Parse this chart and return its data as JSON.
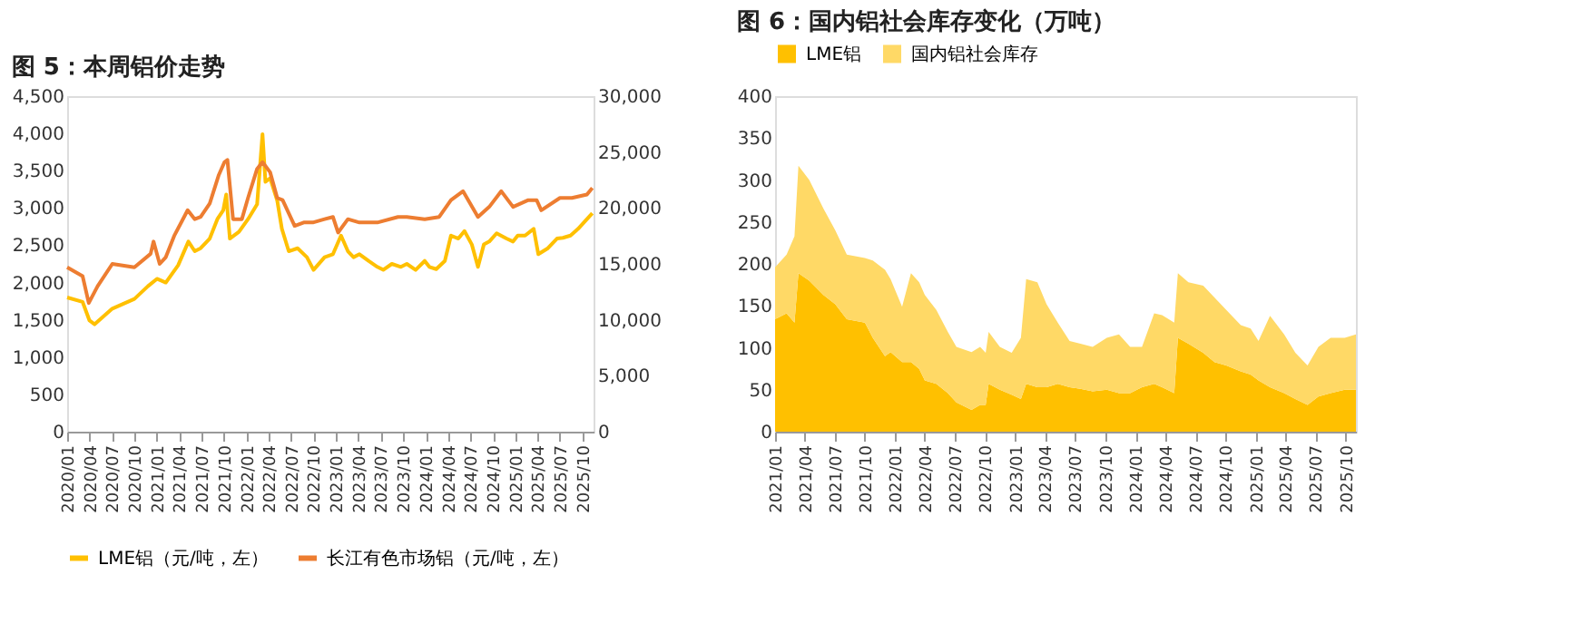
{
  "chart_data": [
    {
      "type": "line",
      "title": "图 5：本周铝价走势",
      "legend": "bottom",
      "grid": false,
      "xlim": [
        "2020-01-01",
        "2025-11-15"
      ],
      "xticks": [
        {
          "value": "2020-01",
          "label": "2020/01"
        },
        {
          "value": "2020-04",
          "label": "2020/04"
        },
        {
          "value": "2020-07",
          "label": "2020/07"
        },
        {
          "value": "2020-10",
          "label": "2020/10"
        },
        {
          "value": "2021-01",
          "label": "2021/01"
        },
        {
          "value": "2021-04",
          "label": "2021/04"
        },
        {
          "value": "2021-07",
          "label": "2021/07"
        },
        {
          "value": "2021-10",
          "label": "2021/10"
        },
        {
          "value": "2022-01",
          "label": "2022/01"
        },
        {
          "value": "2022-04",
          "label": "2022/04"
        },
        {
          "value": "2022-07",
          "label": "2022/07"
        },
        {
          "value": "2022-10",
          "label": "2022/10"
        },
        {
          "value": "2023-01",
          "label": "2023/01"
        },
        {
          "value": "2023-04",
          "label": "2023/04"
        },
        {
          "value": "2023-07",
          "label": "2023/07"
        },
        {
          "value": "2023-10",
          "label": "2023/10"
        },
        {
          "value": "2024-01",
          "label": "2024/01"
        },
        {
          "value": "2024-04",
          "label": "2024/04"
        },
        {
          "value": "2024-07",
          "label": "2024/07"
        },
        {
          "value": "2024-10",
          "label": "2024/10"
        },
        {
          "value": "2025-01",
          "label": "2025/01"
        },
        {
          "value": "2025-04",
          "label": "2025/04"
        },
        {
          "value": "2025-07",
          "label": "2025/07"
        },
        {
          "value": "2025-10",
          "label": "2025/10"
        }
      ],
      "ylim": [
        0,
        4500
      ],
      "yticks": [
        {
          "value": 0,
          "label": "0"
        },
        {
          "value": 500,
          "label": "500"
        },
        {
          "value": 1000,
          "label": "1,000"
        },
        {
          "value": 1500,
          "label": "1,500"
        },
        {
          "value": 2000,
          "label": "2,000"
        },
        {
          "value": 2500,
          "label": "2,500"
        },
        {
          "value": 3000,
          "label": "3,000"
        },
        {
          "value": 3500,
          "label": "3,500"
        },
        {
          "value": 4000,
          "label": "4,000"
        },
        {
          "value": 4500,
          "label": "4,500"
        }
      ],
      "y2lim": [
        0,
        30000
      ],
      "y2ticks": [
        {
          "value": 0,
          "label": "0"
        },
        {
          "value": 5000,
          "label": "5,000"
        },
        {
          "value": 10000,
          "label": "10,000"
        },
        {
          "value": 15000,
          "label": "15,000"
        },
        {
          "value": 20000,
          "label": "20,000"
        },
        {
          "value": 25000,
          "label": "25,000"
        },
        {
          "value": 30000,
          "label": "30,000"
        }
      ],
      "series": [
        {
          "name": "LME铝（元/吨，左）",
          "color": "#ffc000",
          "x": [
            "2020-01-01",
            "2020-03-04",
            "2020-04-01",
            "2020-04-22",
            "2020-07-03",
            "2020-10-01",
            "2020-11-25",
            "2021-01-01",
            "2021-02-06",
            "2021-03-28",
            "2021-05-09",
            "2021-06-04",
            "2021-06-28",
            "2021-08-04",
            "2021-09-04",
            "2021-09-28",
            "2021-10-10",
            "2021-10-25",
            "2021-12-01",
            "2022-01-07",
            "2022-02-13",
            "2022-03-07",
            "2022-03-19",
            "2022-04-07",
            "2022-05-06",
            "2022-05-25",
            "2022-06-22",
            "2022-07-28",
            "2022-09-04",
            "2022-10-01",
            "2022-11-15",
            "2022-12-19",
            "2023-01-21",
            "2023-02-18",
            "2023-03-13",
            "2023-04-06",
            "2023-05-13",
            "2023-06-18",
            "2023-07-12",
            "2023-08-16",
            "2023-09-22",
            "2023-10-16",
            "2023-11-21",
            "2023-12-28",
            "2024-01-16",
            "2024-02-13",
            "2024-03-19",
            "2024-04-13",
            "2024-05-13",
            "2024-06-07",
            "2024-07-07",
            "2024-08-01",
            "2024-08-25",
            "2024-09-16",
            "2024-10-16",
            "2024-11-25",
            "2024-12-22",
            "2025-01-10",
            "2025-02-09",
            "2025-03-16",
            "2025-04-04",
            "2025-05-13",
            "2025-06-19",
            "2025-07-13",
            "2025-08-13",
            "2025-09-13",
            "2025-10-19",
            "2025-11-10"
          ],
          "values": [
            1800,
            1740,
            1490,
            1440,
            1650,
            1780,
            1950,
            2050,
            2000,
            2230,
            2550,
            2420,
            2460,
            2590,
            2850,
            2970,
            3180,
            2590,
            2680,
            2850,
            3050,
            3990,
            3350,
            3400,
            3100,
            2720,
            2420,
            2460,
            2340,
            2170,
            2340,
            2380,
            2630,
            2420,
            2340,
            2380,
            2290,
            2210,
            2170,
            2250,
            2210,
            2250,
            2170,
            2290,
            2210,
            2180,
            2290,
            2630,
            2590,
            2690,
            2510,
            2210,
            2510,
            2550,
            2660,
            2590,
            2550,
            2630,
            2630,
            2720,
            2380,
            2460,
            2590,
            2600,
            2630,
            2720,
            2850,
            2930
          ]
        },
        {
          "name": "长江有色市场铝（元/吨，左）",
          "color": "#ed7d31",
          "axis": "y2",
          "x": [
            "2020-01-01",
            "2020-03-04",
            "2020-03-29",
            "2020-05-04",
            "2020-07-03",
            "2020-10-01",
            "2020-12-06",
            "2020-12-18",
            "2021-01-12",
            "2021-02-06",
            "2021-03-12",
            "2021-05-06",
            "2021-06-04",
            "2021-06-28",
            "2021-08-04",
            "2021-09-09",
            "2021-10-03",
            "2021-10-15",
            "2021-11-07",
            "2021-12-13",
            "2022-01-07",
            "2022-02-13",
            "2022-03-07",
            "2022-04-07",
            "2022-05-06",
            "2022-05-28",
            "2022-07-16",
            "2022-08-22",
            "2022-09-28",
            "2022-11-15",
            "2022-12-19",
            "2023-01-09",
            "2023-02-18",
            "2023-04-06",
            "2023-06-18",
            "2023-09-10",
            "2023-10-16",
            "2023-12-28",
            "2024-02-25",
            "2024-04-13",
            "2024-06-01",
            "2024-08-01",
            "2024-09-16",
            "2024-11-04",
            "2024-12-22",
            "2025-02-22",
            "2025-03-28",
            "2025-04-16",
            "2025-07-01",
            "2025-08-19",
            "2025-10-19",
            "2025-11-10"
          ],
          "values": [
            14700,
            13900,
            11500,
            13000,
            15000,
            14700,
            15900,
            17000,
            15000,
            15600,
            17500,
            19800,
            19000,
            19200,
            20400,
            22900,
            24100,
            24300,
            19000,
            19000,
            20900,
            23500,
            24100,
            23200,
            20900,
            20700,
            18400,
            18700,
            18700,
            19000,
            19200,
            17800,
            19000,
            18700,
            18700,
            19200,
            19200,
            19000,
            19200,
            20700,
            21500,
            19200,
            20100,
            21500,
            20100,
            20700,
            20700,
            19800,
            20900,
            20900,
            21200,
            21800
          ]
        }
      ]
    },
    {
      "type": "area",
      "stacked": true,
      "title": "图 6：国内铝社会库存变化（万吨）",
      "legend": "top",
      "grid": false,
      "xlim": [
        "2021-01-01",
        "2025-11-01"
      ],
      "xticks": [
        {
          "value": "2021-01",
          "label": "2021/01"
        },
        {
          "value": "2021-04",
          "label": "2021/04"
        },
        {
          "value": "2021-07",
          "label": "2021/07"
        },
        {
          "value": "2021-10",
          "label": "2021/10"
        },
        {
          "value": "2022-01",
          "label": "2022/01"
        },
        {
          "value": "2022-04",
          "label": "2022/04"
        },
        {
          "value": "2022-07",
          "label": "2022/07"
        },
        {
          "value": "2022-10",
          "label": "2022/10"
        },
        {
          "value": "2023-01",
          "label": "2023/01"
        },
        {
          "value": "2023-04",
          "label": "2023/04"
        },
        {
          "value": "2023-07",
          "label": "2023/07"
        },
        {
          "value": "2023-10",
          "label": "2023/10"
        },
        {
          "value": "2024-01",
          "label": "2024/01"
        },
        {
          "value": "2024-04",
          "label": "2024/04"
        },
        {
          "value": "2024-07",
          "label": "2024/07"
        },
        {
          "value": "2024-10",
          "label": "2024/10"
        },
        {
          "value": "2025-01",
          "label": "2025/01"
        },
        {
          "value": "2025-04",
          "label": "2025/04"
        },
        {
          "value": "2025-07",
          "label": "2025/07"
        },
        {
          "value": "2025-10",
          "label": "2025/10"
        }
      ],
      "ylim": [
        0,
        400
      ],
      "yticks": [
        0,
        50,
        100,
        150,
        200,
        250,
        300,
        350,
        400
      ],
      "x": [
        "2021-01-01",
        "2021-02-05",
        "2021-03-01",
        "2021-03-13",
        "2021-04-15",
        "2021-05-28",
        "2021-07-03",
        "2021-08-07",
        "2021-10-01",
        "2021-10-25",
        "2021-12-01",
        "2021-12-18",
        "2022-01-22",
        "2022-02-18",
        "2022-03-15",
        "2022-04-01",
        "2022-05-06",
        "2022-06-10",
        "2022-07-06",
        "2022-08-21",
        "2022-09-16",
        "2022-10-03",
        "2022-10-12",
        "2022-11-15",
        "2022-12-21",
        "2023-01-18",
        "2023-02-03",
        "2023-03-09",
        "2023-04-06",
        "2023-05-10",
        "2023-06-15",
        "2023-07-18",
        "2023-08-24",
        "2023-10-06",
        "2023-11-12",
        "2023-12-16",
        "2024-01-21",
        "2024-02-27",
        "2024-03-22",
        "2024-04-28",
        "2024-05-09",
        "2024-06-10",
        "2024-07-25",
        "2024-08-28",
        "2024-10-03",
        "2024-11-16",
        "2024-12-16",
        "2025-01-09",
        "2025-02-13",
        "2025-03-28",
        "2025-05-01",
        "2025-06-07",
        "2025-07-10",
        "2025-08-16",
        "2025-09-28",
        "2025-11-01"
      ],
      "series": [
        {
          "name": "LME铝",
          "color": "#ffc000",
          "values": [
            134,
            141,
            130,
            189,
            180,
            163,
            152,
            134,
            130,
            112,
            90,
            95,
            83,
            83,
            75,
            61,
            57,
            46,
            35,
            26,
            32,
            32,
            57,
            50,
            44,
            39,
            57,
            53,
            53,
            57,
            53,
            51,
            48,
            50,
            46,
            46,
            53,
            57,
            53,
            46,
            112,
            105,
            94,
            83,
            79,
            72,
            68,
            61,
            53,
            46,
            39,
            32,
            42,
            46,
            50,
            50
          ]
        },
        {
          "name": "国内铝社会库存",
          "color": "#ffd966",
          "values": [
            62,
            70,
            103,
            128,
            120,
            103,
            88,
            77,
            77,
            92,
            103,
            87,
            66,
            106,
            103,
            102,
            88,
            73,
            66,
            69,
            69,
            62,
            62,
            51,
            50,
            73,
            125,
            125,
            99,
            73,
            55,
            54,
            53,
            62,
            70,
            55,
            48,
            84,
            86,
            84,
            77,
            73,
            80,
            77,
            66,
            55,
            55,
            47,
            85,
            70,
            55,
            47,
            59,
            66,
            62,
            66
          ]
        }
      ]
    }
  ]
}
